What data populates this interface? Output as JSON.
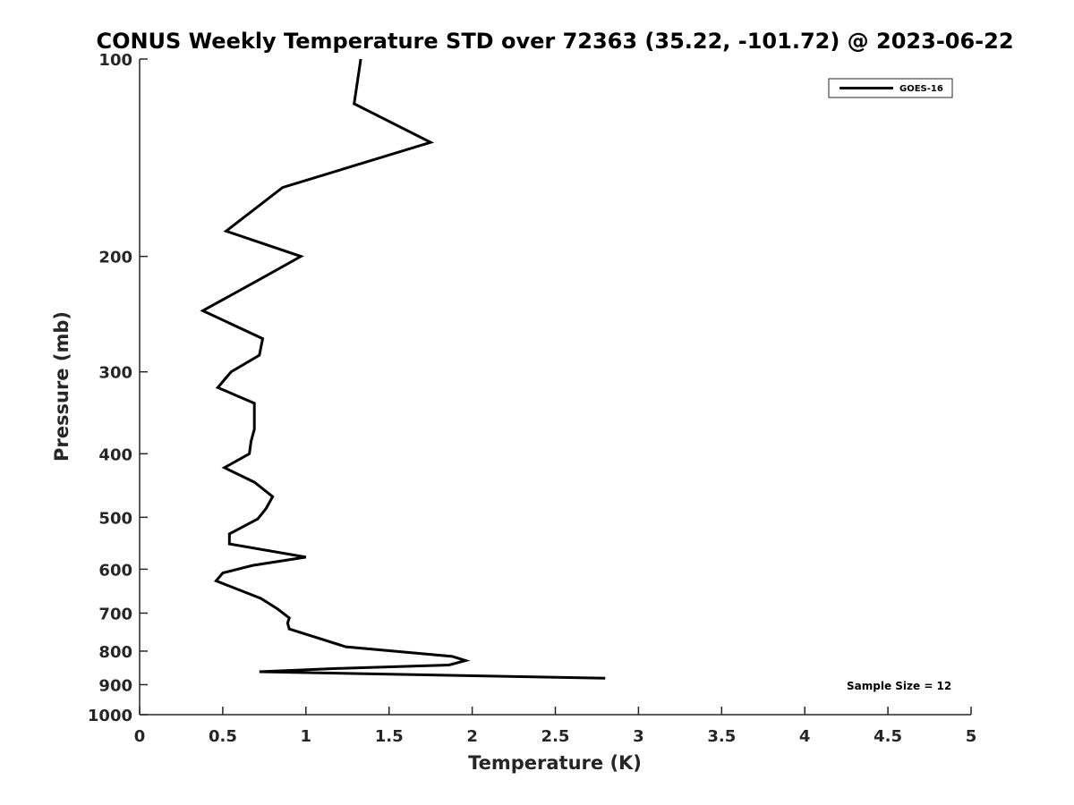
{
  "chart_data": {
    "type": "line",
    "title": "CONUS Weekly Temperature STD over 72363 (35.22, -101.72) @ 2023-06-22",
    "xlabel": "Temperature (K)",
    "ylabel": "Pressure (mb)",
    "xlim": [
      0,
      5
    ],
    "ylim": [
      100,
      1000
    ],
    "y_scale": "log",
    "y_reversed": true,
    "x_ticks": [
      0,
      0.5,
      1,
      1.5,
      2,
      2.5,
      3,
      3.5,
      4,
      4.5,
      5
    ],
    "x_tick_labels": [
      "0",
      "0.5",
      "1",
      "1.5",
      "2",
      "2.5",
      "3",
      "3.5",
      "4",
      "4.5",
      "5"
    ],
    "y_ticks": [
      100,
      200,
      300,
      400,
      500,
      600,
      700,
      800,
      900,
      1000
    ],
    "y_tick_labels": [
      "100",
      "200",
      "300",
      "400",
      "500",
      "600",
      "700",
      "800",
      "900",
      "1000"
    ],
    "grid": false,
    "legend_position": "top-right",
    "series": [
      {
        "name": "GOES-16",
        "color": "#000000",
        "points": [
          {
            "x": 1.33,
            "p": 100
          },
          {
            "x": 1.29,
            "p": 117
          },
          {
            "x": 1.75,
            "p": 134
          },
          {
            "x": 0.86,
            "p": 157
          },
          {
            "x": 0.52,
            "p": 183
          },
          {
            "x": 0.97,
            "p": 200
          },
          {
            "x": 0.72,
            "p": 217
          },
          {
            "x": 0.38,
            "p": 242
          },
          {
            "x": 0.74,
            "p": 267
          },
          {
            "x": 0.72,
            "p": 283
          },
          {
            "x": 0.55,
            "p": 300
          },
          {
            "x": 0.47,
            "p": 317
          },
          {
            "x": 0.69,
            "p": 335
          },
          {
            "x": 0.69,
            "p": 367
          },
          {
            "x": 0.67,
            "p": 383
          },
          {
            "x": 0.66,
            "p": 400
          },
          {
            "x": 0.51,
            "p": 420
          },
          {
            "x": 0.69,
            "p": 442
          },
          {
            "x": 0.8,
            "p": 465
          },
          {
            "x": 0.76,
            "p": 485
          },
          {
            "x": 0.71,
            "p": 503
          },
          {
            "x": 0.54,
            "p": 530
          },
          {
            "x": 0.54,
            "p": 549
          },
          {
            "x": 1.0,
            "p": 575
          },
          {
            "x": 0.68,
            "p": 592
          },
          {
            "x": 0.5,
            "p": 608
          },
          {
            "x": 0.46,
            "p": 625
          },
          {
            "x": 0.73,
            "p": 665
          },
          {
            "x": 0.83,
            "p": 690
          },
          {
            "x": 0.9,
            "p": 712
          },
          {
            "x": 0.89,
            "p": 725
          },
          {
            "x": 0.9,
            "p": 740
          },
          {
            "x": 1.24,
            "p": 788
          },
          {
            "x": 1.88,
            "p": 815
          },
          {
            "x": 1.96,
            "p": 827
          },
          {
            "x": 1.86,
            "p": 840
          },
          {
            "x": 1.2,
            "p": 850
          },
          {
            "x": 0.72,
            "p": 860
          },
          {
            "x": 2.8,
            "p": 880
          }
        ]
      }
    ],
    "annotations": [
      "Sample Size = 12"
    ]
  }
}
